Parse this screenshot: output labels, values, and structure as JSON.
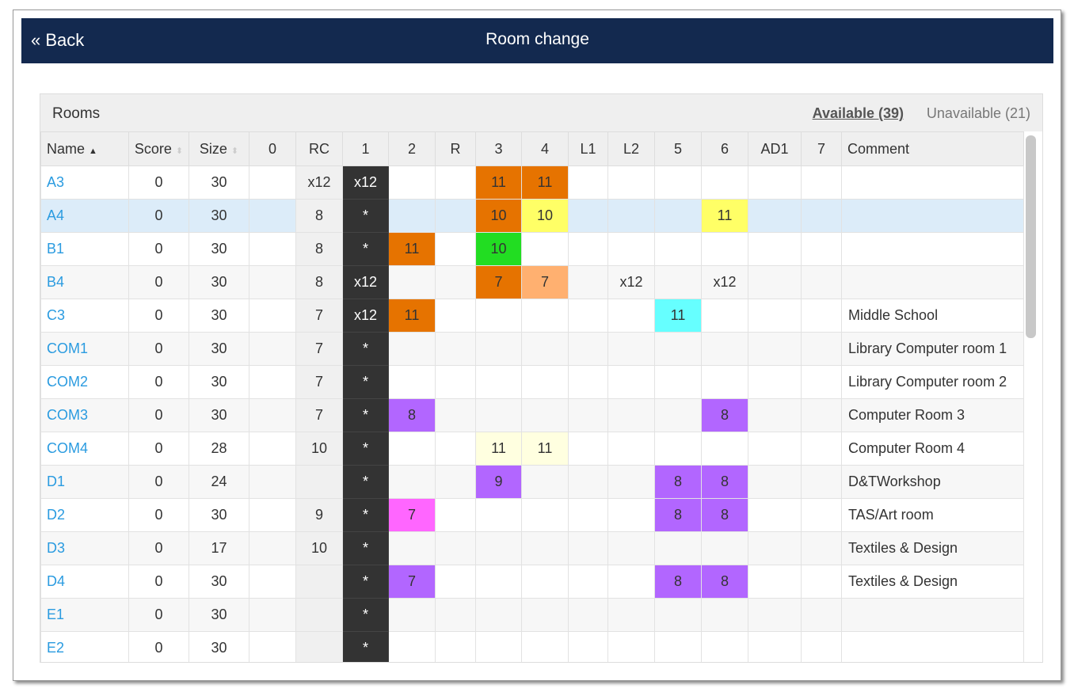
{
  "header": {
    "back": "« Back",
    "title": "Room change"
  },
  "panel": {
    "title": "Rooms",
    "available": "Available (39)",
    "unavailable": "Unavailable (21)"
  },
  "columns": [
    "Name",
    "Score",
    "Size",
    "0",
    "RC",
    "1",
    "2",
    "R",
    "3",
    "4",
    "L1",
    "L2",
    "5",
    "6",
    "AD1",
    "7",
    "Comment"
  ],
  "sort": {
    "name": "▲",
    "score": "⬍",
    "size": "⬍"
  },
  "colors": {
    "orange": "#e67300",
    "yellow": "#ffff66",
    "green": "#22dd22",
    "lightorange": "#ffb070",
    "cyan": "#66ffff",
    "purple": "#b266ff",
    "pink": "#ff66ff",
    "cream": "#ffffe0",
    "dark": "#333333"
  },
  "rows": [
    {
      "name": "A3",
      "score": "0",
      "size": "30",
      "cells": [
        "",
        "x12",
        [
          "x12",
          "dark"
        ],
        "",
        "",
        [
          "11",
          "orange"
        ],
        [
          "11",
          "orange"
        ],
        "",
        "",
        "",
        "",
        "",
        "",
        ""
      ],
      "comment": ""
    },
    {
      "name": "A4",
      "score": "0",
      "size": "30",
      "selected": true,
      "cells": [
        "",
        "8",
        [
          "*",
          "dark"
        ],
        "",
        "",
        [
          "10",
          "orange"
        ],
        [
          "10",
          "yellow"
        ],
        "",
        "",
        "",
        [
          "11",
          "yellow"
        ],
        "",
        ""
      ],
      "comment": ""
    },
    {
      "name": "B1",
      "score": "0",
      "size": "30",
      "cells": [
        "",
        "8",
        [
          "*",
          "dark"
        ],
        [
          "11",
          "orange"
        ],
        "",
        [
          "10",
          "green"
        ],
        "",
        "",
        "",
        "",
        "",
        "",
        ""
      ],
      "comment": ""
    },
    {
      "name": "B4",
      "score": "0",
      "size": "30",
      "cells": [
        "",
        "8",
        [
          "x12",
          "dark"
        ],
        "",
        "",
        [
          "7",
          "orange"
        ],
        [
          "7",
          "lightorange"
        ],
        "",
        "x12",
        "",
        "x12",
        "",
        ""
      ],
      "comment": ""
    },
    {
      "name": "C3",
      "score": "0",
      "size": "30",
      "cells": [
        "",
        "7",
        [
          "x12",
          "dark"
        ],
        [
          "11",
          "orange"
        ],
        "",
        "",
        "",
        "",
        "",
        [
          "11",
          "cyan"
        ],
        "",
        "",
        ""
      ],
      "comment": "Middle School"
    },
    {
      "name": "COM1",
      "score": "0",
      "size": "30",
      "cells": [
        "",
        "7",
        [
          "*",
          "dark"
        ],
        "",
        "",
        "",
        "",
        "",
        "",
        "",
        "",
        "",
        ""
      ],
      "comment": "Library Computer room 1"
    },
    {
      "name": "COM2",
      "score": "0",
      "size": "30",
      "cells": [
        "",
        "7",
        [
          "*",
          "dark"
        ],
        "",
        "",
        "",
        "",
        "",
        "",
        "",
        "",
        "",
        ""
      ],
      "comment": "Library Computer room 2"
    },
    {
      "name": "COM3",
      "score": "0",
      "size": "30",
      "cells": [
        "",
        "7",
        [
          "*",
          "dark"
        ],
        [
          "8",
          "purple"
        ],
        "",
        "",
        "",
        "",
        "",
        "",
        [
          "8",
          "purple"
        ],
        "",
        ""
      ],
      "comment": "Computer Room 3"
    },
    {
      "name": "COM4",
      "score": "0",
      "size": "28",
      "cells": [
        "",
        "10",
        [
          "*",
          "dark"
        ],
        "",
        "",
        [
          "11",
          "cream"
        ],
        [
          "11",
          "cream"
        ],
        "",
        "",
        "",
        "",
        "",
        ""
      ],
      "comment": "Computer Room 4"
    },
    {
      "name": "D1",
      "score": "0",
      "size": "24",
      "cells": [
        "",
        "",
        [
          "*",
          "dark"
        ],
        "",
        "",
        [
          "9",
          "purple"
        ],
        "",
        "",
        "",
        [
          "8",
          "purple"
        ],
        [
          "8",
          "purple"
        ],
        "",
        ""
      ],
      "comment": "D&TWorkshop"
    },
    {
      "name": "D2",
      "score": "0",
      "size": "30",
      "cells": [
        "",
        "9",
        [
          "*",
          "dark"
        ],
        [
          "7",
          "pink"
        ],
        "",
        "",
        "",
        "",
        "",
        [
          "8",
          "purple"
        ],
        [
          "8",
          "purple"
        ],
        "",
        ""
      ],
      "comment": "TAS/Art room"
    },
    {
      "name": "D3",
      "score": "0",
      "size": "17",
      "cells": [
        "",
        "10",
        [
          "*",
          "dark"
        ],
        "",
        "",
        "",
        "",
        "",
        "",
        "",
        "",
        "",
        ""
      ],
      "comment": "Textiles & Design"
    },
    {
      "name": "D4",
      "score": "0",
      "size": "30",
      "cells": [
        "",
        "",
        [
          "*",
          "dark"
        ],
        [
          "7",
          "purple"
        ],
        "",
        "",
        "",
        "",
        "",
        [
          "8",
          "purple"
        ],
        [
          "8",
          "purple"
        ],
        "",
        ""
      ],
      "comment": "Textiles & Design"
    },
    {
      "name": "E1",
      "score": "0",
      "size": "30",
      "cells": [
        "",
        "",
        [
          "*",
          "dark"
        ],
        "",
        "",
        "",
        "",
        "",
        "",
        "",
        "",
        "",
        ""
      ],
      "comment": ""
    },
    {
      "name": "E2",
      "score": "0",
      "size": "30",
      "cells": [
        "",
        "",
        [
          "*",
          "dark"
        ],
        "",
        "",
        "",
        "",
        "",
        "",
        "",
        "",
        "",
        ""
      ],
      "comment": ""
    }
  ]
}
